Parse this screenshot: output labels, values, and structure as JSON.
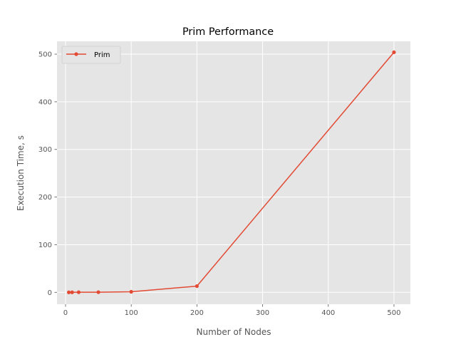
{
  "chart_data": {
    "type": "line",
    "title": "Prim  Performance",
    "xlabel": "Number of Nodes",
    "ylabel": "Execution Time, s",
    "xlim": [
      -13,
      525
    ],
    "ylim": [
      -25,
      527
    ],
    "xticks": [
      0,
      100,
      200,
      300,
      400,
      500
    ],
    "yticks": [
      0,
      100,
      200,
      300,
      400,
      500
    ],
    "grid": true,
    "legend_position": "top-left",
    "series": [
      {
        "name": "Prim",
        "color": "#E24A33",
        "x": [
          5,
          10,
          20,
          50,
          100,
          200,
          500
        ],
        "y": [
          0.01,
          0.05,
          0.2,
          0.3,
          1.2,
          13,
          504
        ]
      }
    ]
  }
}
